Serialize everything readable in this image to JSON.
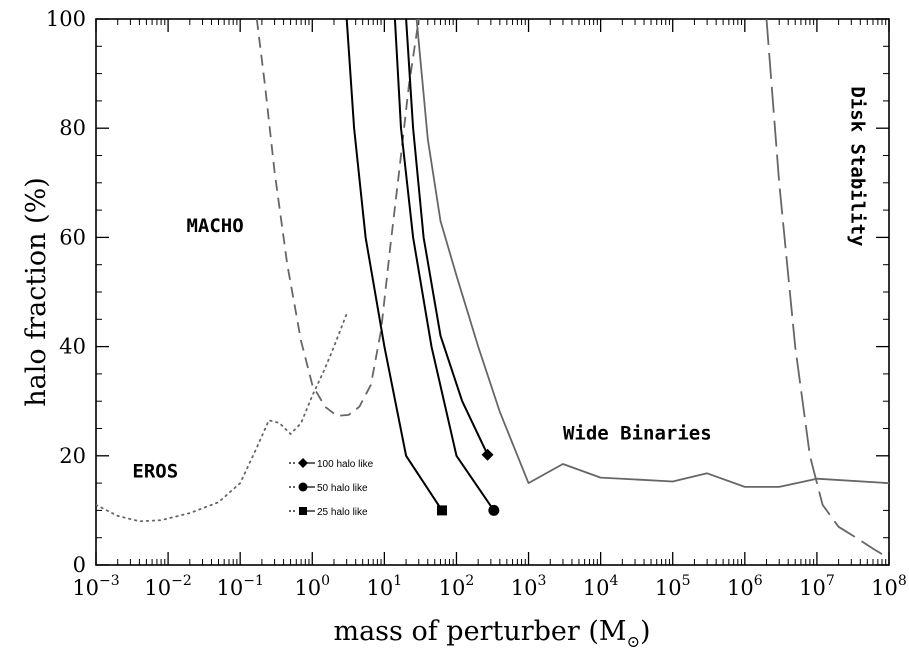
{
  "chart_data": {
    "type": "line",
    "title": "",
    "xlabel": "mass of perturber (M",
    "xlabel_sub": "⊙",
    "xlabel_close": ")",
    "ylabel": "halo fraction (%)",
    "xscale": "log",
    "xlim": [
      0.001,
      100000000
    ],
    "ylim": [
      0,
      100
    ],
    "grid": false,
    "x_tick_exponents": [
      -3,
      -2,
      -1,
      0,
      1,
      2,
      3,
      4,
      5,
      6,
      7,
      8
    ],
    "y_ticks": [
      0,
      20,
      40,
      60,
      80,
      100
    ],
    "legend_position": "center-left",
    "legend": [
      {
        "label": "100 halo like",
        "marker": "diamond"
      },
      {
        "label": "50  halo like",
        "marker": "circle"
      },
      {
        "label": "25 halo like",
        "marker": "square"
      }
    ],
    "annotations": [
      {
        "text": "MACHO",
        "x": 0.018,
        "y": 61
      },
      {
        "text": "EROS",
        "x": 0.0032,
        "y": 16
      },
      {
        "text": "Wide Binaries",
        "x": 3000,
        "y": 23
      },
      {
        "text": "Disk Stability",
        "x": 30000000,
        "y": 73,
        "rotation": 90
      }
    ],
    "series": [
      {
        "key": "macho",
        "style": "dashed-short",
        "color": "#666666",
        "x": [
          0.17,
          0.22,
          0.3,
          0.45,
          0.7,
          1.0,
          1.5,
          2.2,
          3.2,
          4.5,
          6.5,
          9,
          12,
          16,
          22,
          30
        ],
        "y": [
          100,
          88,
          72,
          55,
          41,
          33,
          29,
          27.3,
          27.5,
          29,
          33,
          43,
          58,
          72,
          88,
          100
        ]
      },
      {
        "key": "eros",
        "style": "dotted",
        "color": "#666666",
        "x": [
          0.001,
          0.002,
          0.004,
          0.008,
          0.02,
          0.05,
          0.1,
          0.17,
          0.25,
          0.35,
          0.5,
          0.7,
          1.0,
          1.5,
          2.0,
          3.0
        ],
        "y": [
          11,
          9,
          8,
          8.2,
          9.5,
          11.5,
          15,
          21.5,
          26.5,
          26,
          24,
          26,
          31,
          36,
          40,
          46
        ]
      },
      {
        "key": "wide-binaries",
        "style": "solid",
        "color": "#666666",
        "x": [
          28,
          40,
          60,
          100,
          200,
          400,
          1000,
          3000,
          10000,
          100000,
          300000,
          1000000,
          3000000,
          10000000,
          100000000
        ],
        "y": [
          100,
          78,
          63,
          53,
          40,
          28,
          15,
          18.5,
          16,
          15.3,
          16.8,
          14.3,
          14.3,
          15.8,
          15
        ]
      },
      {
        "key": "disk-stability",
        "style": "dashed-long",
        "color": "#666666",
        "x": [
          2000000,
          3000000,
          5000000,
          8000000,
          12000000,
          20000000,
          35000000,
          60000000,
          80000000
        ],
        "y": [
          100,
          70,
          40,
          20,
          11,
          7,
          5,
          3,
          2
        ]
      },
      {
        "key": "halo-100",
        "style": "solid",
        "color": "#000000",
        "marker": "diamond",
        "x": [
          20,
          25,
          35,
          60,
          120,
          270
        ],
        "y": [
          100,
          80,
          60,
          42,
          30,
          20.2
        ]
      },
      {
        "key": "halo-50",
        "style": "solid",
        "color": "#000000",
        "marker": "circle",
        "x": [
          14,
          17,
          25,
          45,
          100,
          330
        ],
        "y": [
          100,
          80,
          60,
          40,
          20,
          10
        ]
      },
      {
        "key": "halo-25",
        "style": "solid",
        "color": "#000000",
        "marker": "square",
        "x": [
          3,
          3.8,
          5.5,
          10,
          20,
          63
        ],
        "y": [
          100,
          80,
          60,
          40,
          20,
          10
        ]
      }
    ]
  }
}
